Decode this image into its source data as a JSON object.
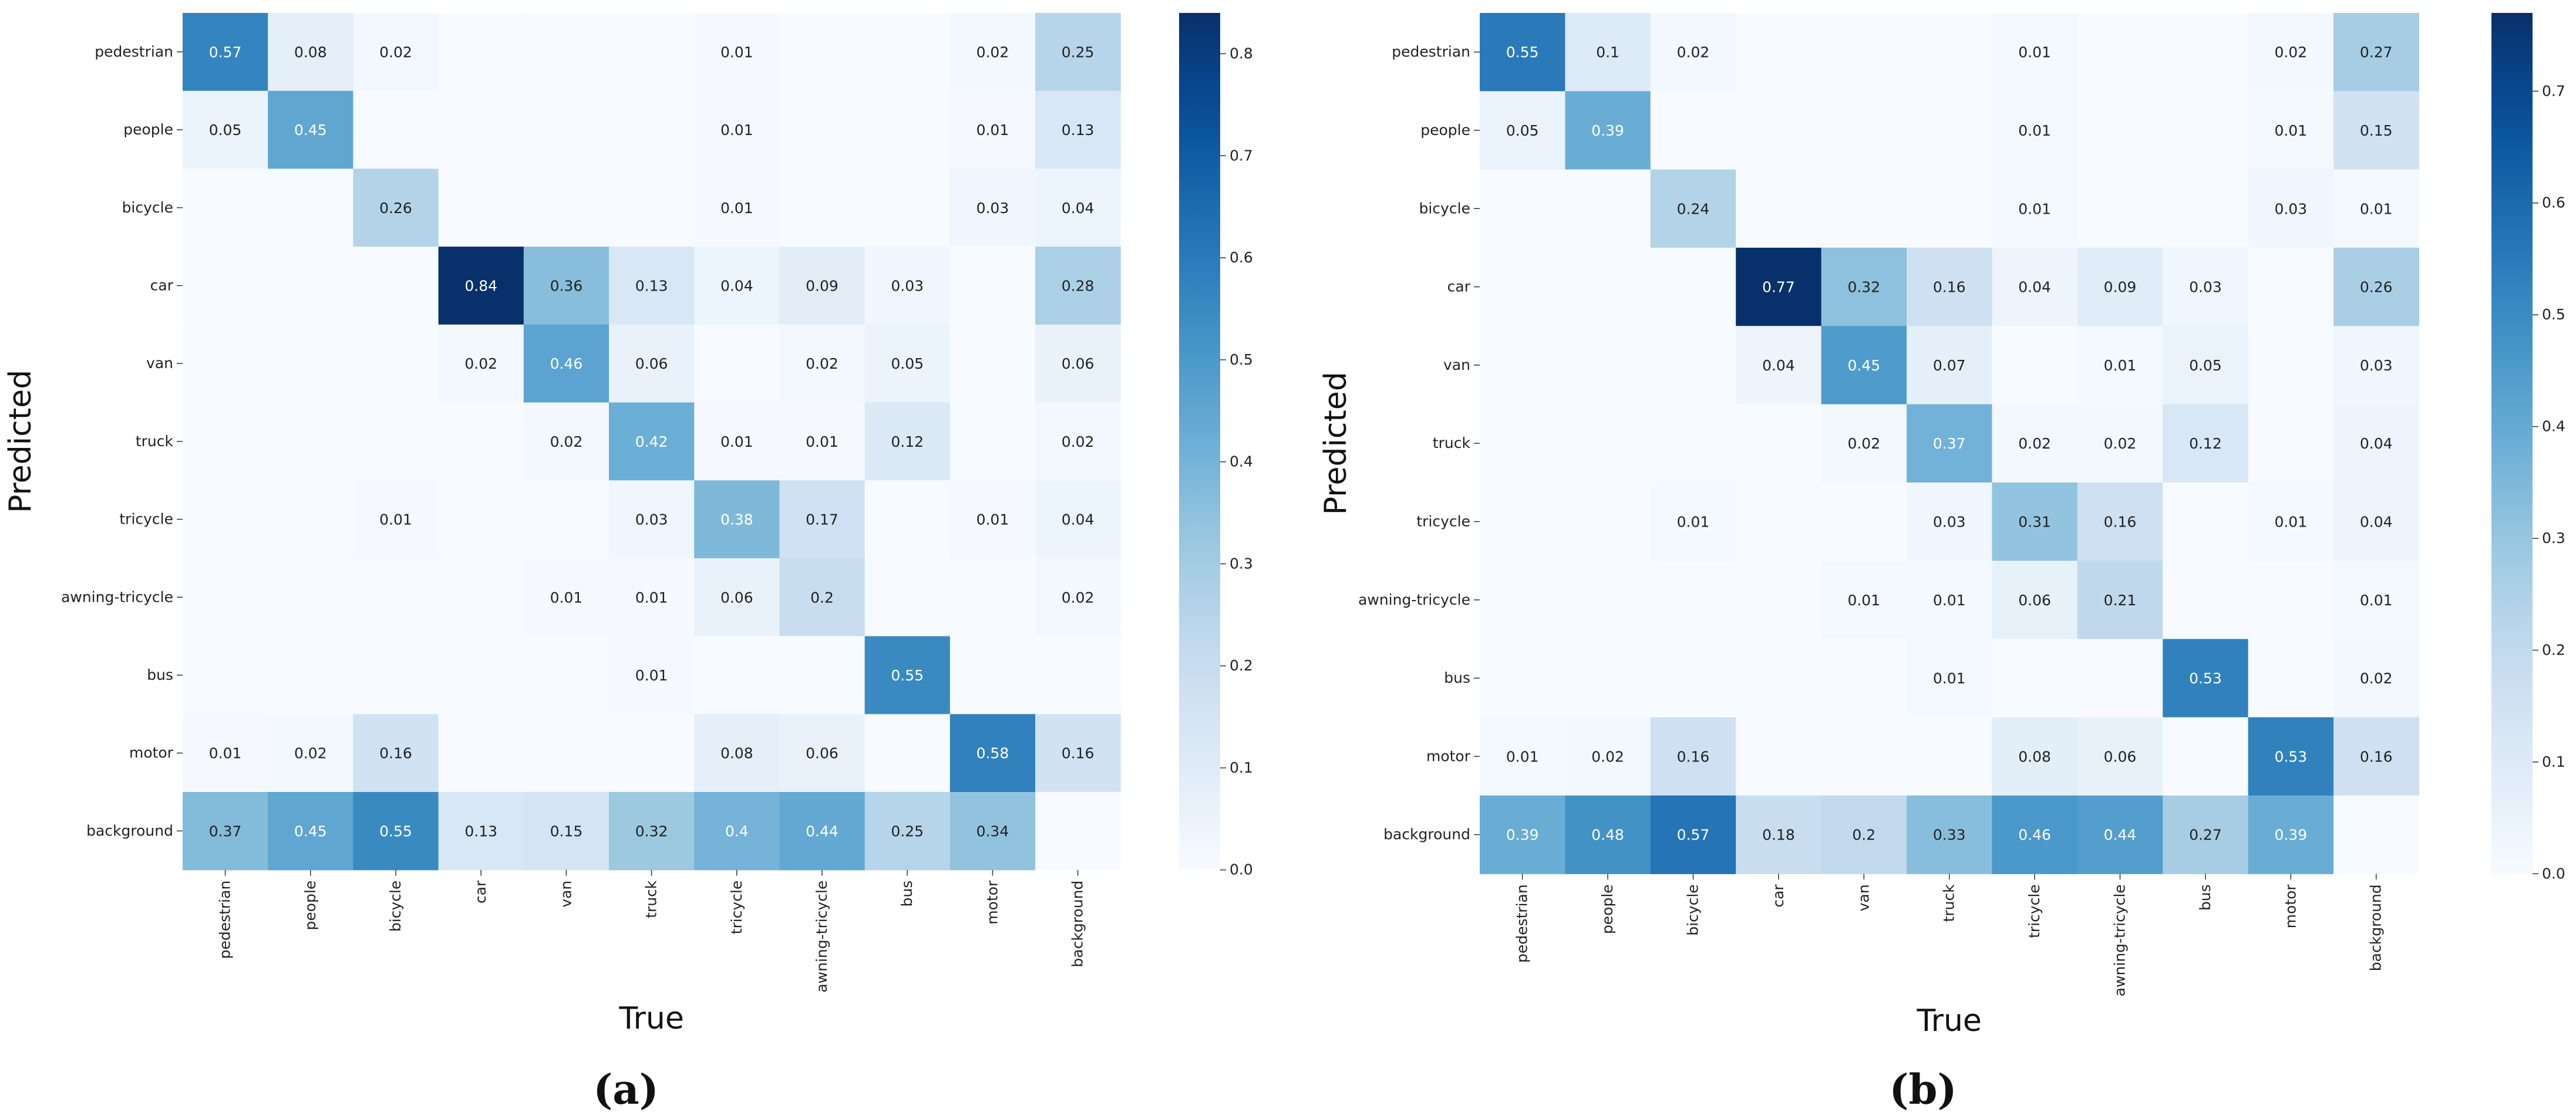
{
  "chart_data": [
    {
      "type": "heatmap",
      "panel_label": "(a)",
      "xlabel": "True",
      "ylabel": "Predicted",
      "x_categories": [
        "pedestrian",
        "people",
        "bicycle",
        "car",
        "van",
        "truck",
        "tricycle",
        "awning-tricycle",
        "bus",
        "motor",
        "background"
      ],
      "y_categories": [
        "pedestrian",
        "people",
        "bicycle",
        "car",
        "van",
        "truck",
        "tricycle",
        "awning-tricycle",
        "bus",
        "motor",
        "background"
      ],
      "values": [
        [
          0.57,
          0.08,
          0.02,
          null,
          null,
          null,
          0.01,
          null,
          null,
          0.02,
          0.25
        ],
        [
          0.05,
          0.45,
          null,
          null,
          null,
          null,
          0.01,
          null,
          null,
          0.01,
          0.13
        ],
        [
          null,
          null,
          0.26,
          null,
          null,
          null,
          0.01,
          null,
          null,
          0.03,
          0.04
        ],
        [
          null,
          null,
          null,
          0.84,
          0.36,
          0.13,
          0.04,
          0.09,
          0.03,
          null,
          0.28
        ],
        [
          null,
          null,
          null,
          0.02,
          0.46,
          0.06,
          null,
          0.02,
          0.05,
          null,
          0.06
        ],
        [
          null,
          null,
          null,
          null,
          0.02,
          0.42,
          0.01,
          0.01,
          0.12,
          null,
          0.02
        ],
        [
          null,
          null,
          0.01,
          null,
          null,
          0.03,
          0.38,
          0.17,
          null,
          0.01,
          0.04
        ],
        [
          null,
          null,
          null,
          null,
          0.01,
          0.01,
          0.06,
          0.2,
          null,
          null,
          0.02
        ],
        [
          null,
          null,
          null,
          null,
          null,
          0.01,
          null,
          null,
          0.55,
          null,
          null
        ],
        [
          0.01,
          0.02,
          0.16,
          null,
          null,
          null,
          0.08,
          0.06,
          null,
          0.58,
          0.16
        ],
        [
          0.37,
          0.45,
          0.55,
          0.13,
          0.15,
          0.32,
          0.4,
          0.44,
          0.25,
          0.34,
          null
        ]
      ],
      "colorbar": {
        "range": [
          0,
          0.84
        ],
        "ticks": [
          "0.0",
          "0.1",
          "0.2",
          "0.3",
          "0.4",
          "0.5",
          "0.6",
          "0.7",
          "0.8"
        ]
      }
    },
    {
      "type": "heatmap",
      "panel_label": "(b)",
      "xlabel": "True",
      "ylabel": "Predicted",
      "x_categories": [
        "pedestrian",
        "people",
        "bicycle",
        "car",
        "van",
        "truck",
        "tricycle",
        "awning-tricycle",
        "bus",
        "motor",
        "background"
      ],
      "y_categories": [
        "pedestrian",
        "people",
        "bicycle",
        "car",
        "van",
        "truck",
        "tricycle",
        "awning-tricycle",
        "bus",
        "motor",
        "background"
      ],
      "values": [
        [
          0.55,
          0.1,
          0.02,
          null,
          null,
          null,
          0.01,
          null,
          null,
          0.02,
          0.27
        ],
        [
          0.05,
          0.39,
          null,
          null,
          null,
          null,
          0.01,
          null,
          null,
          0.01,
          0.15
        ],
        [
          null,
          null,
          0.24,
          null,
          null,
          null,
          0.01,
          null,
          null,
          0.03,
          0.01
        ],
        [
          null,
          null,
          null,
          0.77,
          0.32,
          0.16,
          0.04,
          0.09,
          0.03,
          null,
          0.26
        ],
        [
          null,
          null,
          null,
          0.04,
          0.45,
          0.07,
          null,
          0.01,
          0.05,
          null,
          0.03
        ],
        [
          null,
          null,
          null,
          null,
          0.02,
          0.37,
          0.02,
          0.02,
          0.12,
          null,
          0.04
        ],
        [
          null,
          null,
          0.01,
          null,
          null,
          0.03,
          0.31,
          0.16,
          null,
          0.01,
          0.04
        ],
        [
          null,
          null,
          null,
          null,
          0.01,
          0.01,
          0.06,
          0.21,
          null,
          null,
          0.01
        ],
        [
          null,
          null,
          null,
          null,
          null,
          0.01,
          null,
          null,
          0.53,
          null,
          0.02
        ],
        [
          0.01,
          0.02,
          0.16,
          null,
          null,
          null,
          0.08,
          0.06,
          null,
          0.53,
          0.16
        ],
        [
          0.39,
          0.48,
          0.57,
          0.18,
          0.2,
          0.33,
          0.46,
          0.44,
          0.27,
          0.39,
          null
        ]
      ],
      "colorbar": {
        "range": [
          0,
          0.77
        ],
        "ticks": [
          "0.0",
          "0.1",
          "0.2",
          "0.3",
          "0.4",
          "0.5",
          "0.6",
          "0.7"
        ]
      }
    }
  ]
}
